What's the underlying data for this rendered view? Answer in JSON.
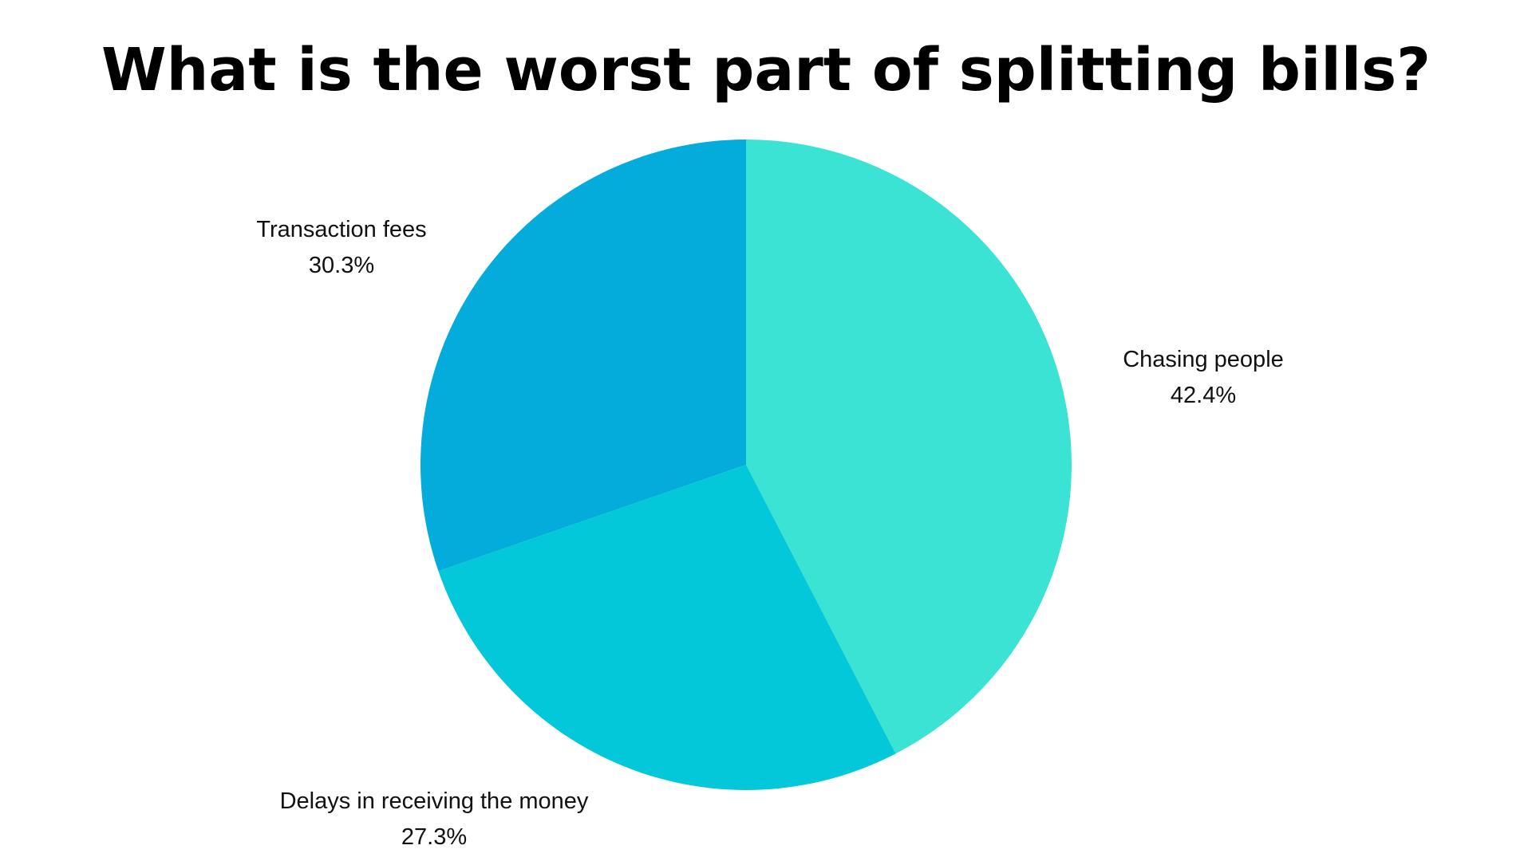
{
  "chart_data": {
    "type": "pie",
    "title": "What is the worst part of splitting bills?",
    "slices": [
      {
        "label": "Chasing people",
        "value": 42.4,
        "value_label": "42.4%",
        "color": "#3AE3D3"
      },
      {
        "label": "Delays in receiving the money",
        "value": 27.3,
        "value_label": "27.3%",
        "color": "#03C8DA"
      },
      {
        "label": "Transaction fees",
        "value": 30.3,
        "value_label": "30.3%",
        "color": "#03ACDB"
      }
    ],
    "start_angle": "12 o'clock",
    "direction": "clockwise",
    "legend": "none",
    "label_placement": "outside"
  }
}
